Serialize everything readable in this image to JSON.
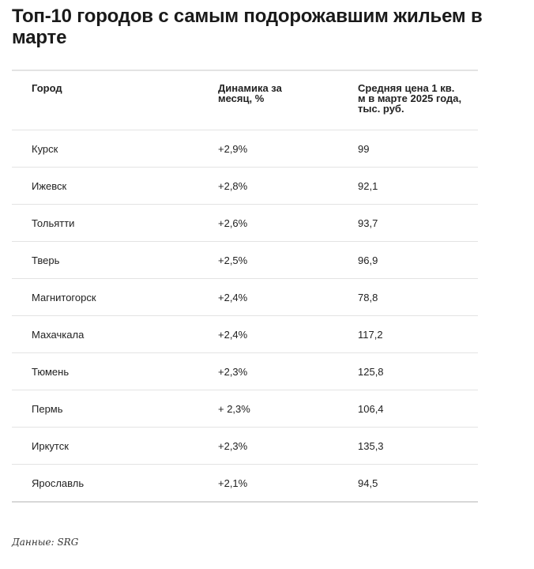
{
  "title": "Топ-10 городов с самым подорожавшим жильем в марте",
  "table": {
    "headers": [
      "Город",
      "Динамика за месяц, %",
      "Средняя цена 1 кв. м в марте 2025 года, тыс. руб."
    ],
    "rows": [
      [
        "Курск",
        "+2,9%",
        "99"
      ],
      [
        "Ижевск",
        "+2,8%",
        "92,1"
      ],
      [
        "Тольятти",
        "+2,6%",
        "93,7"
      ],
      [
        "Тверь",
        "+2,5%",
        "96,9"
      ],
      [
        "Магнитогорск",
        "+2,4%",
        "78,8"
      ],
      [
        "Махачкала",
        "+2,4%",
        "117,2"
      ],
      [
        "Тюмень",
        "+2,3%",
        "125,8"
      ],
      [
        "Пермь",
        "+ 2,3%",
        "106,4"
      ],
      [
        "Иркутск",
        "+2,3%",
        "135,3"
      ],
      [
        "Ярославль",
        "+2,1%",
        "94,5"
      ]
    ]
  },
  "footer": "Данные: SRG"
}
